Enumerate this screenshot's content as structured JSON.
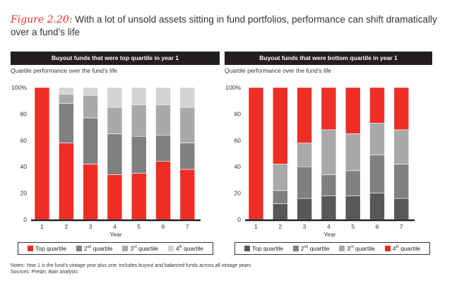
{
  "title": {
    "figure": "Figure 2.20:",
    "text": "With a lot of unsold assets sitting in fund portfolios, performance can shift dramatically over a fund’s life"
  },
  "notes": "Notes: Year 1 is the fund’s vintage year plus one; includes buyout and balanced funds across all vintage years",
  "sources": "Sources: Preqin; Bain analysis",
  "chart_data": [
    {
      "type": "bar",
      "stacked": true,
      "title": "Buyout funds that were top quartile in year 1",
      "subtitle": "Quartile performance over the fund’s life",
      "xlabel": "Year",
      "ylabel": "",
      "ylim": [
        0,
        100
      ],
      "yticks": [
        "0",
        "20",
        "40",
        "60",
        "80",
        "100%"
      ],
      "categories": [
        "1",
        "2",
        "3",
        "4",
        "5",
        "6",
        "7"
      ],
      "legend_position": "bottom",
      "series": [
        {
          "name": "Top quartile",
          "sup": "",
          "label": "Top quartile",
          "color": "#ee2e24",
          "values": [
            100,
            58,
            42,
            34,
            35,
            44,
            38
          ]
        },
        {
          "name": "2nd quartile",
          "sup": "nd",
          "label": "2",
          "suffix": " quartile",
          "color": "#808080",
          "values": [
            0,
            30,
            35,
            31,
            28,
            20,
            20
          ]
        },
        {
          "name": "3rd quartile",
          "sup": "rd",
          "label": "3",
          "suffix": " quartile",
          "color": "#a8a9ab",
          "values": [
            0,
            7,
            17,
            20,
            24,
            23,
            27
          ]
        },
        {
          "name": "4th quartile",
          "sup": "th",
          "label": "4",
          "suffix": " quartile",
          "color": "#d4d4d6",
          "values": [
            0,
            5,
            6,
            15,
            13,
            13,
            15
          ]
        }
      ]
    },
    {
      "type": "bar",
      "stacked": true,
      "title": "Buyout funds that were bottom quartile in year 1",
      "subtitle": "Quartile performance over the fund’s life",
      "xlabel": "Year",
      "ylabel": "",
      "ylim": [
        0,
        100
      ],
      "yticks": [
        "0",
        "20",
        "40",
        "60",
        "80",
        "100%"
      ],
      "categories": [
        "1",
        "2",
        "3",
        "4",
        "5",
        "6",
        "7"
      ],
      "legend_position": "bottom",
      "series": [
        {
          "name": "Top quartile",
          "sup": "",
          "label": "Top quartile",
          "color": "#58585a",
          "values": [
            0,
            12,
            16,
            18,
            18,
            20,
            16
          ]
        },
        {
          "name": "2nd quartile",
          "sup": "nd",
          "label": "2",
          "suffix": " quartile",
          "color": "#808080",
          "values": [
            0,
            10,
            24,
            16,
            19,
            29,
            26
          ]
        },
        {
          "name": "3rd quartile",
          "sup": "rd",
          "label": "3",
          "suffix": " quartile",
          "color": "#a8a9ab",
          "values": [
            0,
            20,
            18,
            34,
            28,
            24,
            26
          ]
        },
        {
          "name": "4th quartile",
          "sup": "th",
          "label": "4",
          "suffix": " quartile",
          "color": "#ee2e24",
          "values": [
            100,
            58,
            42,
            32,
            35,
            27,
            32
          ]
        }
      ]
    }
  ]
}
